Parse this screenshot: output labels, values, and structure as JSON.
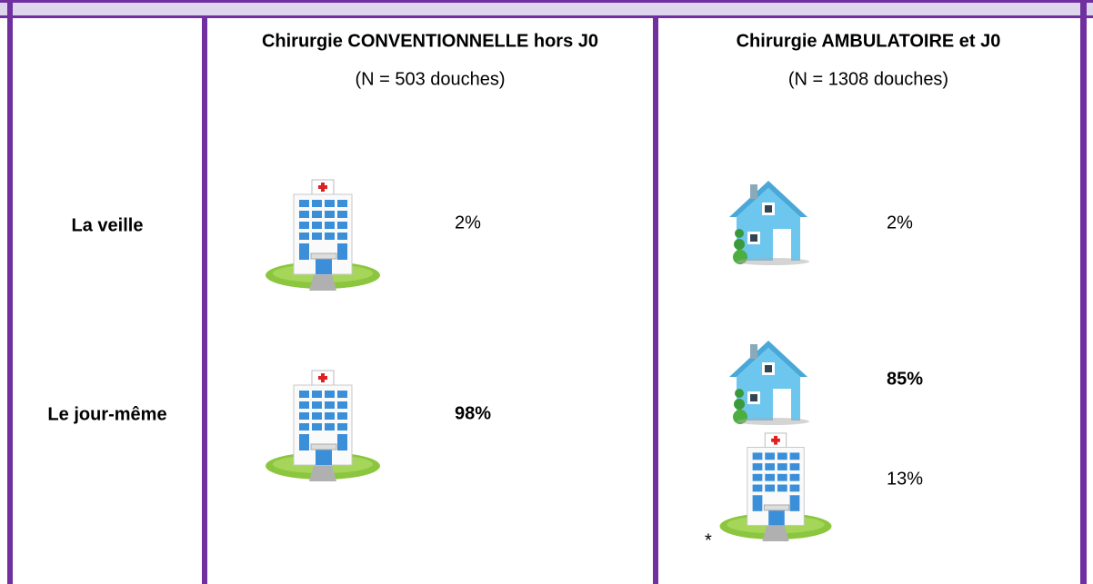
{
  "header": {
    "columns": [
      {
        "title": "Chirurgie CONVENTIONNELLE hors J0",
        "subtitle": "(N = 503 douches)"
      },
      {
        "title": "Chirurgie AMBULATOIRE et J0",
        "subtitle": "(N = 1308 douches)"
      }
    ]
  },
  "rows": [
    {
      "label": "La veille",
      "cells": [
        [
          "2%"
        ],
        [
          "2%"
        ]
      ]
    },
    {
      "label": "Le jour-même",
      "cells": [
        [
          "98%"
        ],
        [
          "85%",
          "13%"
        ]
      ]
    }
  ],
  "note": "*"
}
